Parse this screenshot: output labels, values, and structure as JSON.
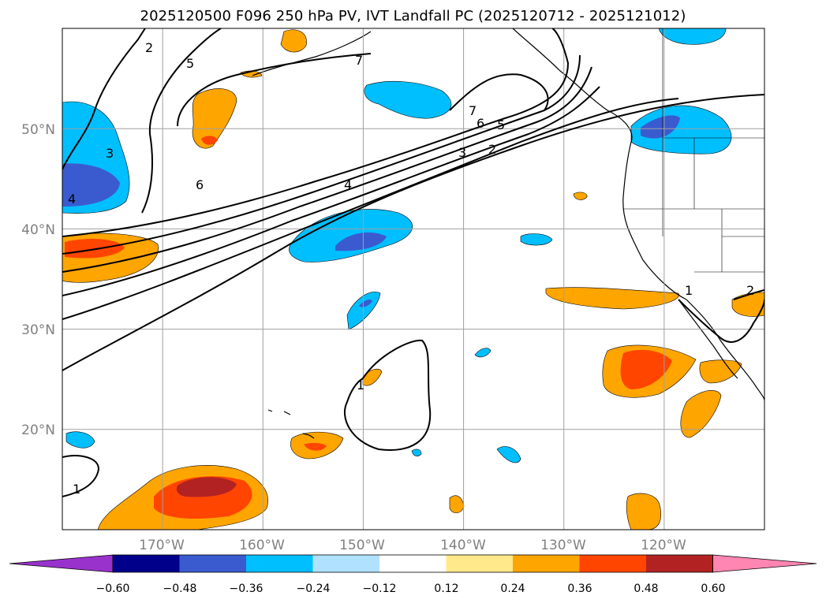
{
  "title": "2025120500 F096 250 hPa PV, IVT Landfall PC (2025120712 - 2025121012)",
  "map": {
    "lon_range": [
      -180,
      -110
    ],
    "lat_range": [
      10,
      60
    ],
    "lon_ticks": [
      {
        "lon": -170,
        "label": "170°W"
      },
      {
        "lon": -160,
        "label": "160°W"
      },
      {
        "lon": -150,
        "label": "150°W"
      },
      {
        "lon": -140,
        "label": "140°W"
      },
      {
        "lon": -130,
        "label": "130°W"
      },
      {
        "lon": -120,
        "label": "120°W"
      }
    ],
    "lat_ticks": [
      {
        "lat": 20,
        "label": "20°N"
      },
      {
        "lat": 30,
        "label": "30°N"
      },
      {
        "lat": 40,
        "label": "40°N"
      },
      {
        "lat": 50,
        "label": "50°N"
      }
    ],
    "gridlines": true,
    "contour_labels": [
      "2",
      "5",
      "7",
      "7",
      "6",
      "5",
      "3",
      "2",
      "6",
      "4",
      "3",
      "4",
      "1",
      "1",
      "1",
      "2"
    ]
  },
  "colorbar": {
    "ticks": [
      "−0.60",
      "−0.48",
      "−0.36",
      "−0.24",
      "−0.12",
      "0.12",
      "0.24",
      "0.36",
      "0.48",
      "0.60"
    ],
    "colors": [
      "#9932cc",
      "#00008b",
      "#3a5bd0",
      "#00bfff",
      "#b0e2ff",
      "#ffffff",
      "#ffe98a",
      "#ffa500",
      "#ff4500",
      "#b22222",
      "#ff86b0"
    ]
  }
}
